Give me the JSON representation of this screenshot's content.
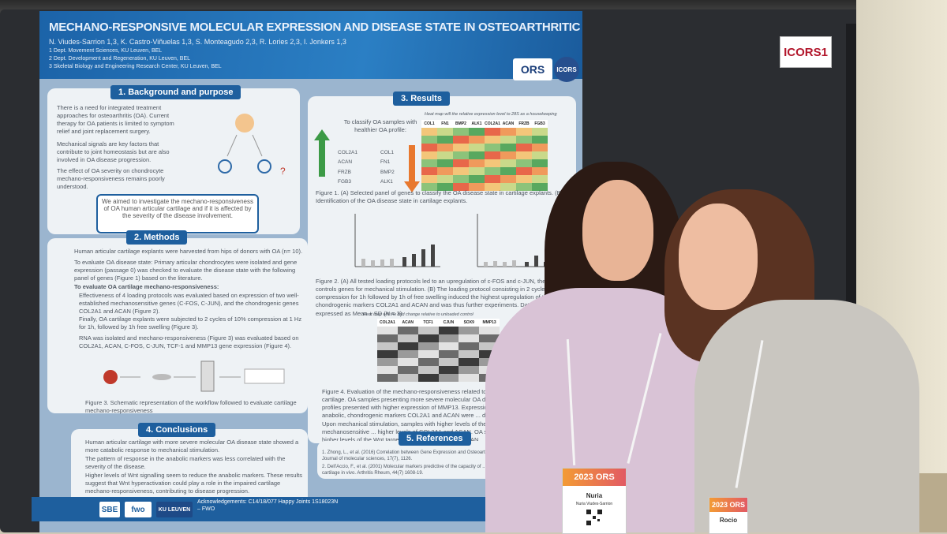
{
  "booth_tag": "ICORS1",
  "poster": {
    "title": "MECHANO-RESPONSIVE MOLECULAR EXPRESSION AND DISEASE STATE IN OSTEOARTHRITIC ARTICULAR CARTILAGE",
    "authors": "N. Viudes-Sarrion 1,3, K. Castro-Viñuelas 1,3, S. Monteagudo 2,3, R. Lories 2,3, I. Jonkers 1,3",
    "affiliations": [
      "1 Dept. Movement Sciences, KU Leuven, BEL",
      "2 Dept. Development and Regeneration, KU Leuven, BEL",
      "3 Skeletal Biology and Engineering Research Center, KU Leuven, BEL"
    ],
    "logos": {
      "ors": "ORS",
      "icors": "ICORS"
    },
    "sections": {
      "background": "1. Background and purpose",
      "methods": "2. Methods",
      "conclusions": "4. Conclusions",
      "results": "3. Results",
      "references": "5. References"
    },
    "background_points": [
      "There is a need for integrated treatment approaches for osteoarthritis (OA). Current therapy for OA patients is limited to symptom relief and joint replacement surgery.",
      "Mechanical signals are key factors that contribute to joint homeostasis but are also involved in OA disease progression.",
      "The effect of OA severity on chondrocyte mechano-responsiveness remains poorly understood."
    ],
    "aim": "We aimed to investigate the mechano-responsiveness of OA human articular cartilage and if it is affected by the severity of the disease involvement.",
    "methods_intro": "Human articular cartilage explants were harvested from hips of donors with OA (n= 10).",
    "methods_points": [
      "To evaluate OA disease state: Primary articular chondrocytes were isolated and gene expression (passage 0) was checked to evaluate the disease state with the following panel of genes (Figure 1) based on the literature.",
      "To evaluate OA cartilage mechano-responsiveness:",
      "Effectiveness of 4 loading protocols was evaluated based on expression of two well-established mechanosensitive genes (C-FOS, C-JUN), and the chondrogenic genes COL2A1 and ACAN (Figure 2).",
      "Finally, OA cartilage explants were subjected to 2 cycles of 10% compression at 1 Hz for 1h, followed by 1h free swelling (Figure 3).",
      "RNA was isolated and mechano-responsiveness (Figure 3) was evaluated based on COL2A1, ACAN, C-FOS, C-JUN, TCF-1 and MMP13 gene expression (Figure 4)."
    ],
    "figure3_caption": "Figure 3. Schematic representation of the workflow followed to evaluate cartilage mechano-responsiveness",
    "conclusions_points": [
      "Human articular cartilage with more severe molecular OA disease state showed a more catabolic response to mechanical stimulation.",
      "The pattern of response in the anabolic markers was less correlated with the severity of the disease.",
      "Higher levels of Wnt signalling seem to reduce the anabolic markers. These results suggest that Wnt hyperactivation could play a role in the impaired cartilage mechano-responsiveness, contributing to disease progression."
    ],
    "acknowledgements": "Acknowledgements: C14/18/077 Happy Joints 1S18023N – FWO",
    "results_intro": "To classify OA samples with healthier OA profile:",
    "genes_left": [
      "COL2A1",
      "ACAN",
      "FRZB",
      "FGB3"
    ],
    "genes_right": [
      "COL1",
      "FN1",
      "BMP2",
      "ALK1"
    ],
    "heatmap1_caption": "Heat map will the relative expression level to 28S as a housekeeping",
    "heatmap1_cols": [
      "COL1",
      "FN1",
      "BMP2",
      "ALK1",
      "COL2A1",
      "ACAN",
      "FRZB",
      "FGB3"
    ],
    "fig1_caption": "Figure 1. (A) Selected panel of genes to classify the OA disease state in cartilage explants. (B) Identification of the OA disease state in cartilage explants.",
    "fig2_caption": "Figure 2. (A) All tested loading protocols led to an upregulation of c-FOS and c-JUN, the positive controls genes for mechanical stimulation. (B) The loading protocol consisting in 2 cycles of 10% compression for 1h followed by 1h of free swelling induced the highest upregulation of the chondrogenic markers COL2A1 and ACAN and was thus further experiments. Data are expressed as Mean ± SD (N = 3).",
    "heatmap2_caption": "Heat map will the fold change relative to unloaded control",
    "heatmap2_cols": [
      "COL2A1",
      "ACAN",
      "TCF1",
      "CJUN",
      "SOX9",
      "MMP13"
    ],
    "fig4_caption": "Figure 4. Evaluation of the mechano-responsiveness related to OA state of cartilage. OA samples presenting more severe molecular OA disease profiles presented with higher expression of MMP13. Expression levels of anabolic, chondrogenic markers COL2A1 and ACAN were ... disease. Upon mechanical stimulation, samples with higher levels of the mechanosensitive ... higher levels of COL2A1 and ACAN. OA samples with higher levels of the Wnt target ... cJUN, COL2A1 and ACAN.",
    "references": [
      "1. Zhong, L., et al. (2016) Correlation between Gene Expression and Osteoarthritis ... Journal of molecular sciences, 17(7), 1126.",
      "2. Dell'Accio, F., et al. (2001) Molecular markers predictive of the capacity of ... form stable cartilage in vivo. Arthritis Rheum, 44(7) 1608-19."
    ],
    "footer_logos": [
      "SBE",
      "fwo",
      "KU LEUVEN"
    ]
  },
  "badges": [
    {
      "event": "2023 ORS",
      "name": "Nuria",
      "surname": "Nuria Viudes-Sarrion"
    },
    {
      "event": "2023 ORS",
      "name": "Rocio"
    }
  ],
  "colors": {
    "poster_blue": "#1e5f9e",
    "badge_orange": "#f39b34",
    "sweater_left": "#d9c3d6",
    "sweater_right": "#c9c6c0"
  }
}
